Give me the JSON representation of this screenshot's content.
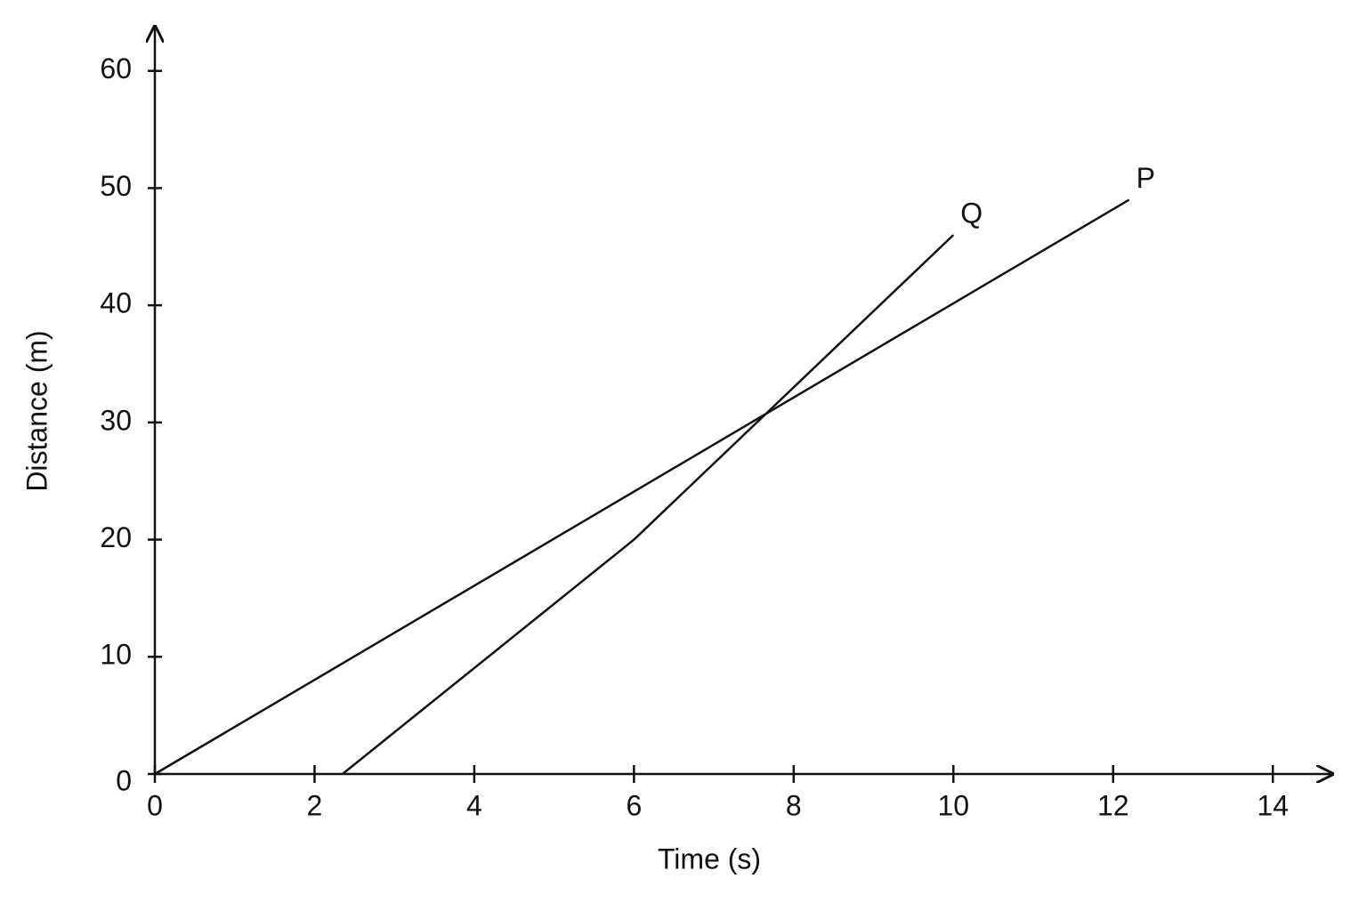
{
  "chart_data": {
    "type": "line",
    "x_label": "Time (s)",
    "y_label": "Distance (m)",
    "xlim": [
      0,
      14.7
    ],
    "ylim": [
      0,
      64
    ],
    "xticks": [
      0,
      2,
      4,
      6,
      8,
      10,
      12,
      14
    ],
    "yticks": [
      0,
      10,
      20,
      30,
      40,
      50,
      60
    ],
    "grid": false,
    "series": [
      {
        "name": "P",
        "color": "#111111",
        "x": [
          0,
          12.2
        ],
        "values": [
          0,
          49
        ]
      },
      {
        "name": "Q",
        "color": "#111111",
        "x": [
          2.35,
          6,
          10
        ],
        "values": [
          0,
          20,
          46
        ]
      }
    ]
  }
}
